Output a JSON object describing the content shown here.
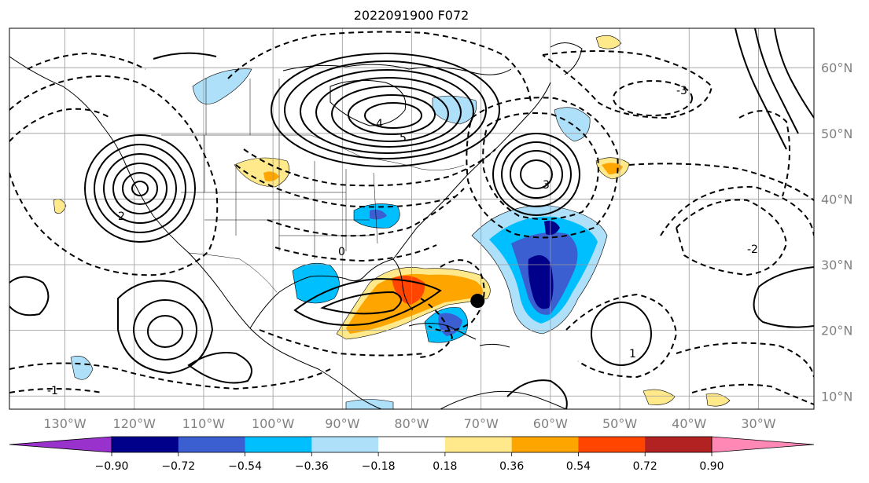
{
  "title": "2022091900 F072",
  "map": {
    "projection": "lat-lon",
    "lon_range": [
      -138,
      -22
    ],
    "lat_range": [
      8,
      66
    ],
    "lon_labels": [
      "130°W",
      "120°W",
      "110°W",
      "100°W",
      "90°W",
      "80°W",
      "70°W",
      "60°W",
      "50°W",
      "40°W",
      "30°W"
    ],
    "lat_labels": [
      "60°N",
      "50°N",
      "40°N",
      "30°N",
      "20°N",
      "10°N"
    ],
    "grid": true,
    "storm_marker": {
      "lon": -70.5,
      "lat": 24.5
    }
  },
  "colorbar": {
    "ticks": [
      "−0.90",
      "−0.72",
      "−0.54",
      "−0.36",
      "−0.18",
      "0.18",
      "0.36",
      "0.54",
      "0.72",
      "0.90"
    ],
    "colors": [
      "#9932cc",
      "#00008b",
      "#3b5fd0",
      "#00bfff",
      "#aee0fa",
      "#ffffff",
      "#ffe98a",
      "#ffa500",
      "#ff4500",
      "#b22222",
      "#ff88b5"
    ],
    "extend": "both"
  },
  "contour_labels": {
    "positive": [
      "4",
      "5",
      "2",
      "1",
      "3",
      "0"
    ],
    "negative": [
      "-1",
      "-2",
      "-3"
    ]
  }
}
